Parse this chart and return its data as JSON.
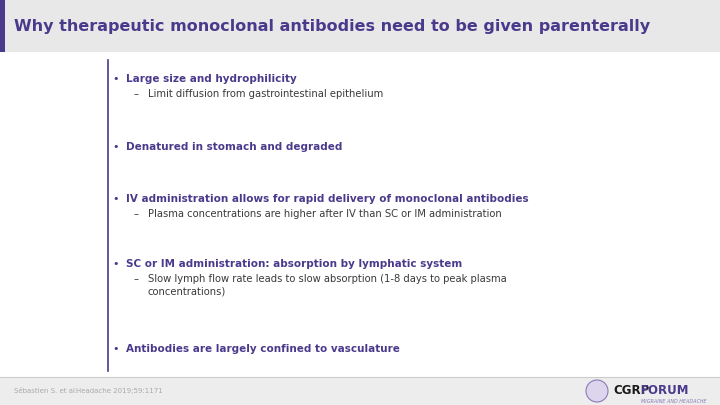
{
  "title": "Why therapeutic monoclonal antibodies need to be given parenterally",
  "title_color": "#4B3A8C",
  "title_fontsize": 11.5,
  "background_color": "#EDEDED",
  "content_bg": "#FFFFFF",
  "left_bar_color": "#4B3A8C",
  "bullet_color": "#4B3A8C",
  "text_color": "#3A3A3A",
  "bullets": [
    {
      "text": "Large size and hydrophilicity",
      "bold": true,
      "sub": [
        "Limit diffusion from gastrointestinal epithelium"
      ]
    },
    {
      "text": "Denatured in stomach and degraded",
      "bold": true,
      "sub": []
    },
    {
      "text": "IV administration allows for rapid delivery of monoclonal antibodies",
      "bold": true,
      "sub": [
        "Plasma concentrations are higher after IV than SC or IM administration"
      ]
    },
    {
      "text": "SC or IM administration: absorption by lymphatic system",
      "bold": true,
      "sub": [
        "Slow lymph flow rate leads to slow absorption (1-8 days to peak plasma\nconcentrations)"
      ]
    },
    {
      "text": "Antibodies are largely confined to vasculature",
      "bold": true,
      "sub": []
    }
  ],
  "footnote_left": "Sébastien S. et al.",
  "footnote_right": "Headache 2019;59:1171",
  "footnote_color": "#AAAAAA",
  "footnote_fontsize": 5.0,
  "title_bg_color": "#E8E8E8",
  "separator_color": "#CCCCCC",
  "cgrp_color": "#1A1A1A",
  "forum_color": "#4B3A8C",
  "logo_bg": "#DDD5EE",
  "logo_border": "#8B7AB8"
}
